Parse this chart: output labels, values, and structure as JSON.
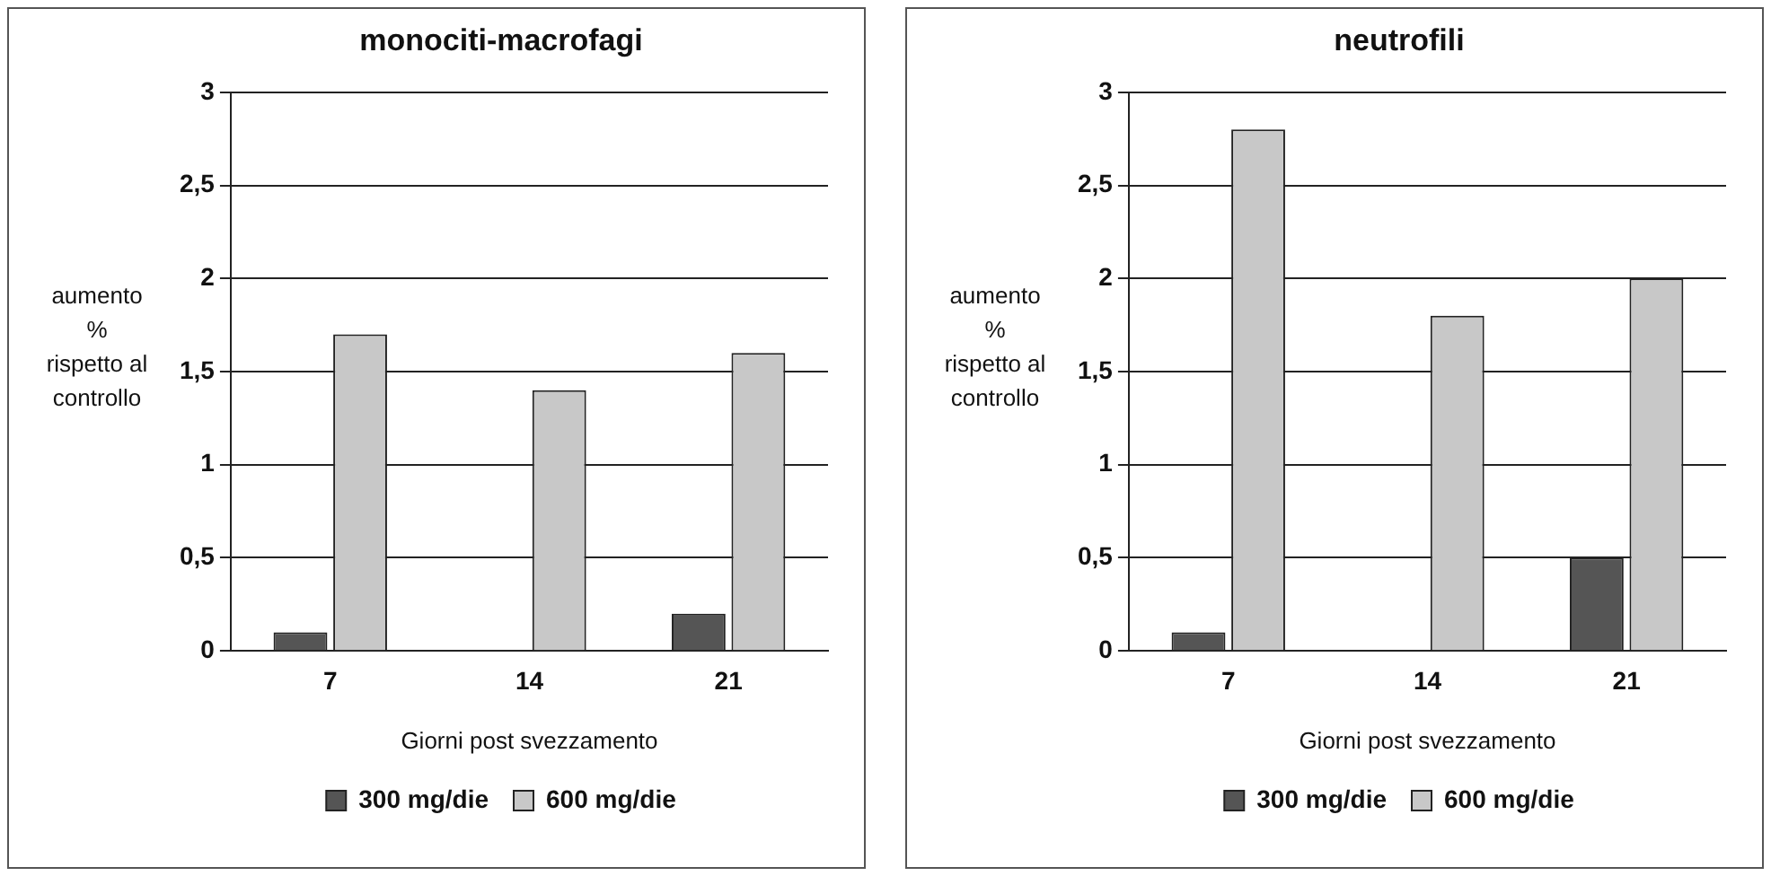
{
  "chart_data": [
    {
      "type": "bar",
      "title": "monociti-macrofagi",
      "xlabel": "Giorni post svezzamento",
      "ylabel": "aumento\n%\nrispetto al\ncontrollo",
      "categories": [
        "7",
        "14",
        "21"
      ],
      "series": [
        {
          "name": "300 mg/die",
          "color": "#555555",
          "values": [
            0.1,
            0,
            0.2
          ]
        },
        {
          "name": "600 mg/die",
          "color": "#c8c8c8",
          "values": [
            1.7,
            1.4,
            1.6
          ]
        }
      ],
      "ylim": [
        0,
        3
      ],
      "yticks": [
        0,
        {
          "value": 0.5,
          "label": "0,5"
        },
        1,
        {
          "value": 1.5,
          "label": "1,5"
        },
        2,
        {
          "value": 2.5,
          "label": "2,5"
        },
        3
      ],
      "grid": "y",
      "legend": "bottom"
    },
    {
      "type": "bar",
      "title": "neutrofili",
      "xlabel": "Giorni post svezzamento",
      "ylabel": "aumento\n%\nrispetto al\ncontrollo",
      "categories": [
        "7",
        "14",
        "21"
      ],
      "series": [
        {
          "name": "300 mg/die",
          "color": "#555555",
          "values": [
            0.1,
            0,
            0.5
          ]
        },
        {
          "name": "600 mg/die",
          "color": "#c8c8c8",
          "values": [
            2.8,
            1.8,
            2.0
          ]
        }
      ],
      "ylim": [
        0,
        3
      ],
      "yticks": [
        0,
        {
          "value": 0.5,
          "label": "0,5"
        },
        1,
        {
          "value": 1.5,
          "label": "1,5"
        },
        2,
        {
          "value": 2.5,
          "label": "2,5"
        },
        3
      ],
      "grid": "y",
      "legend": "bottom"
    }
  ]
}
